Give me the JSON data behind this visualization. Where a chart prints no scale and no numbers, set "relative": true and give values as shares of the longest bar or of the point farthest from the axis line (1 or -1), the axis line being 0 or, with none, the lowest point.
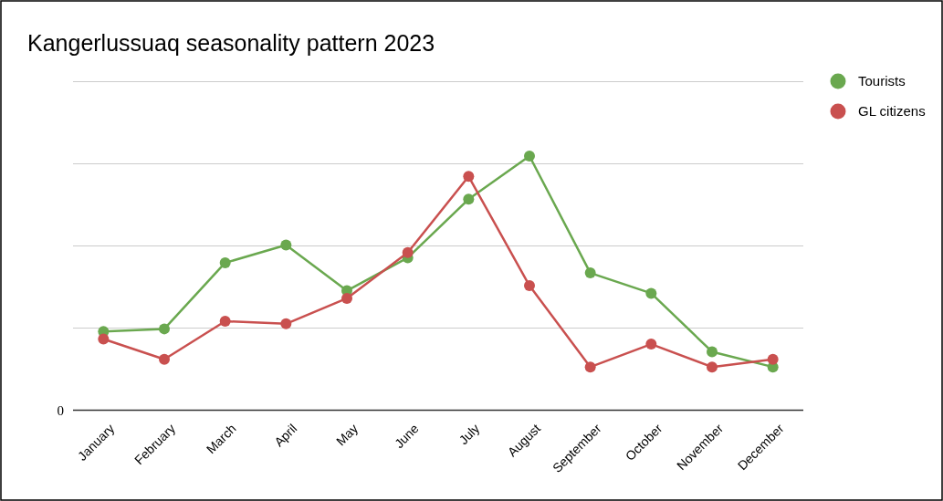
{
  "chart_data": {
    "type": "line",
    "title": "Kangerlussuaq seasonality pattern 2023",
    "relative": true,
    "categories": [
      "January",
      "February",
      "March",
      "April",
      "May",
      "June",
      "July",
      "August",
      "September",
      "October",
      "November",
      "December"
    ],
    "series": [
      {
        "name": "Tourists",
        "color": "#6aa84f",
        "values": [
          0.31,
          0.32,
          0.58,
          0.65,
          0.47,
          0.6,
          0.83,
          1,
          0.54,
          0.46,
          0.23,
          0.17
        ]
      },
      {
        "name": "GL citizens",
        "color": "#c9504f",
        "values": [
          0.28,
          0.2,
          0.35,
          0.34,
          0.44,
          0.62,
          0.92,
          0.49,
          0.17,
          0.26,
          0.17,
          0.2
        ]
      }
    ],
    "annotations": [
      "0"
    ],
    "grid": "y",
    "legend": "right",
    "marker": "circle",
    "line_style": "solid"
  }
}
